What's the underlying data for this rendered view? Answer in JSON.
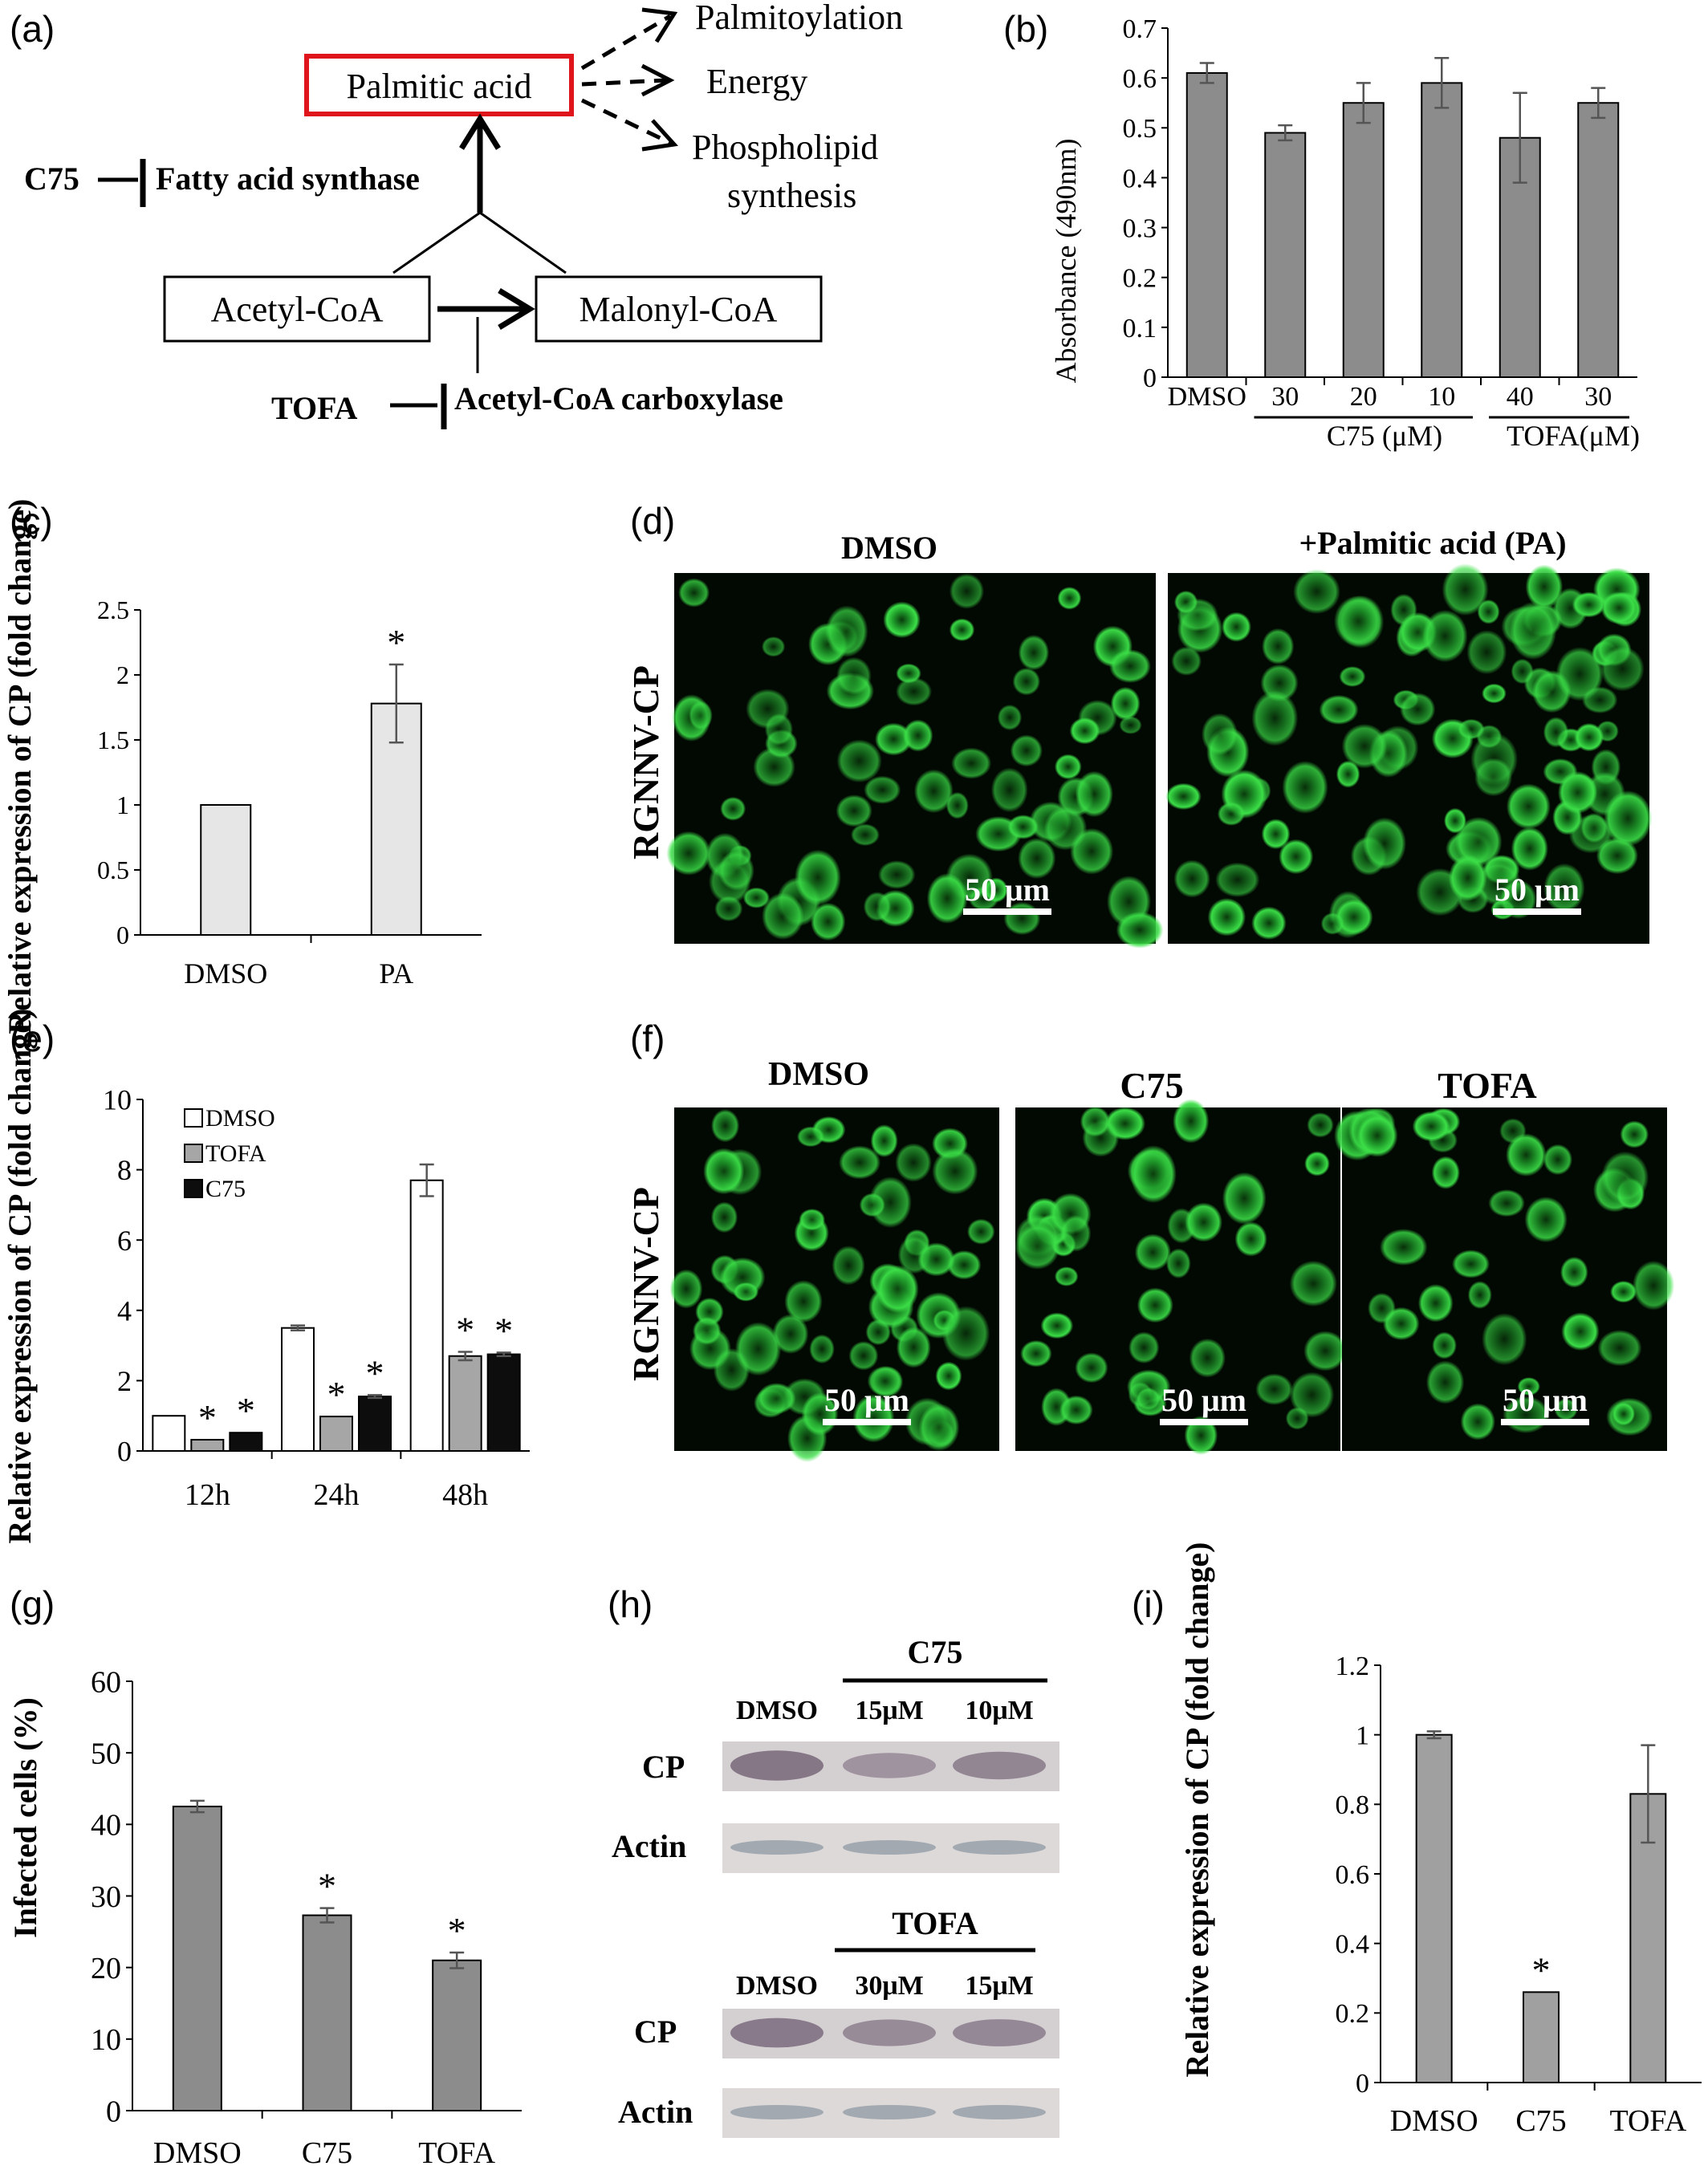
{
  "panel_labels": [
    "(a)",
    "(b)",
    "(c)",
    "(d)",
    "(e)",
    "(f)",
    "(g)",
    "(h)",
    "(i)"
  ],
  "colors": {
    "bar_dark_gray": "#8c8c8c",
    "bar_light_gray": "#e6e6e6",
    "bar_black": "#0d0d0d",
    "highlight_red": "#e0141b",
    "fluorescence_green": "#2fd63a"
  },
  "diagram_a": {
    "palmitic_acid": "Palmitic acid",
    "outputs": [
      "Palmitoylation",
      "Energy",
      "Phospholipid",
      "synthesis"
    ],
    "c75": "C75",
    "fatty_acid_synthase": "Fatty acid synthase",
    "acetyl_coa": "Acetyl-CoA",
    "malonyl_coa": "Malonyl-CoA",
    "tofa": "TOFA",
    "acetyl_coa_carboxylase": "Acetyl-CoA carboxylase"
  },
  "micrographs": {
    "d": {
      "row_label": "RGNNV-CP",
      "columns": [
        "DMSO",
        "+Palmitic acid (PA)"
      ],
      "scale_bar": "50 μm"
    },
    "f": {
      "row_label": "RGNNV-CP",
      "columns": [
        "DMSO",
        "C75",
        "TOFA"
      ],
      "scale_bar": "50 μm"
    }
  },
  "blot_h": {
    "top_group": "C75",
    "top_lanes": [
      "DMSO",
      "15μM",
      "10μM"
    ],
    "bottom_group": "TOFA",
    "bottom_lanes": [
      "DMSO",
      "30μM",
      "15μM"
    ],
    "rows": [
      "CP",
      "Actin"
    ]
  },
  "chart_data": [
    {
      "id": "b",
      "type": "bar",
      "categories": [
        "DMSO",
        "30",
        "20",
        "10",
        "40",
        "30"
      ],
      "values": [
        0.61,
        0.49,
        0.55,
        0.59,
        0.48,
        0.55
      ],
      "errors": [
        0.02,
        0.015,
        0.04,
        0.05,
        0.09,
        0.03
      ],
      "groups": [
        {
          "label": "C75 (μM)",
          "from": 1,
          "to": 3
        },
        {
          "label": "TOFA(μM)",
          "from": 4,
          "to": 5
        }
      ],
      "ylabel": "Absorbance (490nm)",
      "ylim": [
        0,
        0.7
      ],
      "yticks": [
        "0",
        "0.1",
        "0.2",
        "0.3",
        "0.4",
        "0.5",
        "0.6",
        "0.7"
      ],
      "color": "#8c8c8c"
    },
    {
      "id": "c",
      "type": "bar",
      "categories": [
        "DMSO",
        "PA"
      ],
      "values": [
        1.0,
        1.78
      ],
      "errors": [
        0.0,
        0.3
      ],
      "significant": [
        false,
        true
      ],
      "ylabel": "Relative expression of CP (fold change)",
      "ylim": [
        0,
        2.5
      ],
      "yticks": [
        "0",
        "0.5",
        "1",
        "1.5",
        "2",
        "2.5"
      ],
      "color": "#e6e6e6"
    },
    {
      "id": "e",
      "type": "bar",
      "categories": [
        "12h",
        "24h",
        "48h"
      ],
      "series": [
        {
          "name": "DMSO",
          "values": [
            1.0,
            3.5,
            7.7
          ],
          "errors": [
            0.0,
            0.07,
            0.45
          ],
          "significant": [
            false,
            false,
            false
          ],
          "color": "#ffffff"
        },
        {
          "name": "TOFA",
          "values": [
            0.32,
            0.98,
            2.7
          ],
          "errors": [
            0.0,
            0.0,
            0.12
          ],
          "significant": [
            true,
            true,
            true
          ],
          "color": "#a6a6a6"
        },
        {
          "name": "C75",
          "values": [
            0.52,
            1.55,
            2.75
          ],
          "errors": [
            0.0,
            0.04,
            0.05
          ],
          "significant": [
            true,
            true,
            true
          ],
          "color": "#0d0d0d"
        }
      ],
      "ylabel": "Relative expression of CP (fold change)",
      "ylim": [
        0,
        10
      ],
      "yticks": [
        "0",
        "2",
        "4",
        "6",
        "8",
        "10"
      ],
      "legend": "top-left"
    },
    {
      "id": "g",
      "type": "bar",
      "categories": [
        "DMSO",
        "C75",
        "TOFA"
      ],
      "values": [
        42.5,
        27.3,
        21.0
      ],
      "errors": [
        0.8,
        1.0,
        1.1
      ],
      "significant": [
        false,
        true,
        true
      ],
      "ylabel": "Infected cells (%)",
      "ylim": [
        0,
        60
      ],
      "yticks": [
        "0",
        "10",
        "20",
        "30",
        "40",
        "50",
        "60"
      ],
      "color": "#8c8c8c"
    },
    {
      "id": "i",
      "type": "bar",
      "categories": [
        "DMSO",
        "C75",
        "TOFA"
      ],
      "values": [
        1.0,
        0.26,
        0.83
      ],
      "errors": [
        0.01,
        0.0,
        0.14
      ],
      "significant": [
        false,
        true,
        false
      ],
      "ylabel": "Relative expression of CP (fold change)",
      "ylim": [
        0,
        1.2
      ],
      "yticks": [
        "0",
        "0.2",
        "0.4",
        "0.6",
        "0.8",
        "1",
        "1.2"
      ],
      "color": "#a0a0a0"
    }
  ]
}
